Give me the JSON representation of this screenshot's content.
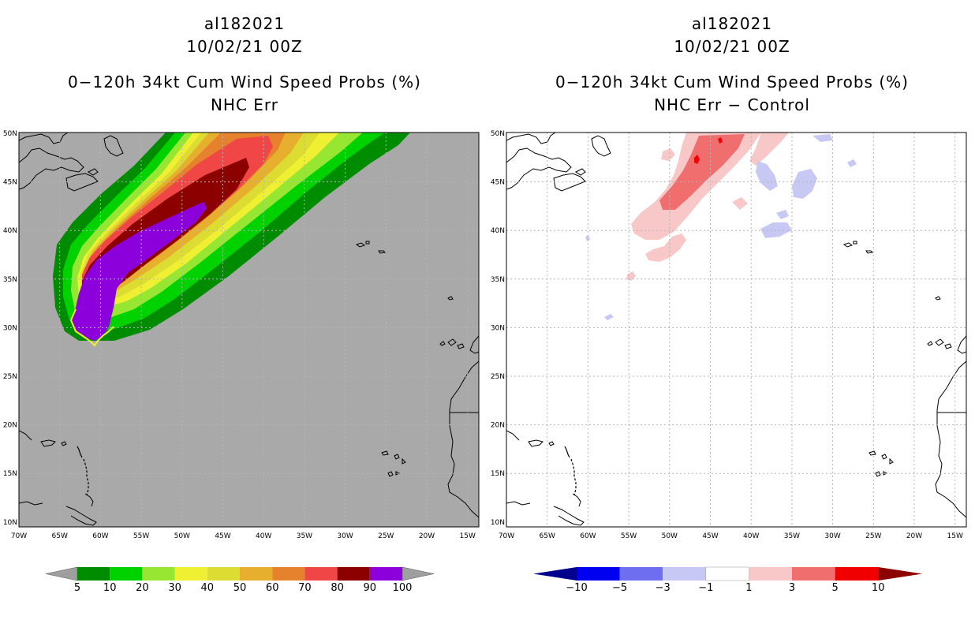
{
  "colors": {
    "land_bg": "#a9a9a9",
    "plain_bg": "#ffffff",
    "grid": "#b5b5b5"
  },
  "panels": [
    {
      "id": "left",
      "title_lines": [
        "al182021",
        "10/02/21 00Z",
        "0−120h 34kt Cum Wind Speed Probs (%)",
        "NHC Err"
      ],
      "colorbar": {
        "colors": [
          "#9f9f9f",
          "#008c00",
          "#00d200",
          "#96e632",
          "#f0f032",
          "#dcdc32",
          "#e6af2d",
          "#e6822d",
          "#f04646",
          "#8c0000",
          "#8c00dc",
          "#9f9f9f"
        ],
        "labels": [
          "5",
          "10",
          "20",
          "30",
          "40",
          "50",
          "60",
          "70",
          "80",
          "90",
          "100"
        ]
      }
    },
    {
      "id": "right",
      "title_lines": [
        "al182021",
        "10/02/21 00Z",
        "0−120h 34kt Cum Wind Speed Probs (%)",
        "NHC Err − Control"
      ],
      "colorbar": {
        "colors": [
          "#00008c",
          "#0000f0",
          "#6e6ef0",
          "#c8c8f5",
          "#ffffff",
          "#f8c8c8",
          "#f06e6e",
          "#f00000",
          "#8c0000"
        ],
        "labels": [
          "−10",
          "−5",
          "−3",
          "−1",
          "1",
          "3",
          "5",
          "10"
        ]
      }
    }
  ],
  "axes": {
    "lon_labels": [
      "70W",
      "65W",
      "60W",
      "55W",
      "50W",
      "45W",
      "40W",
      "35W",
      "30W",
      "25W",
      "20W",
      "15W"
    ],
    "lat_labels": [
      "50N",
      "45N",
      "40N",
      "35N",
      "30N",
      "25N",
      "20N",
      "15N",
      "10N"
    ]
  }
}
